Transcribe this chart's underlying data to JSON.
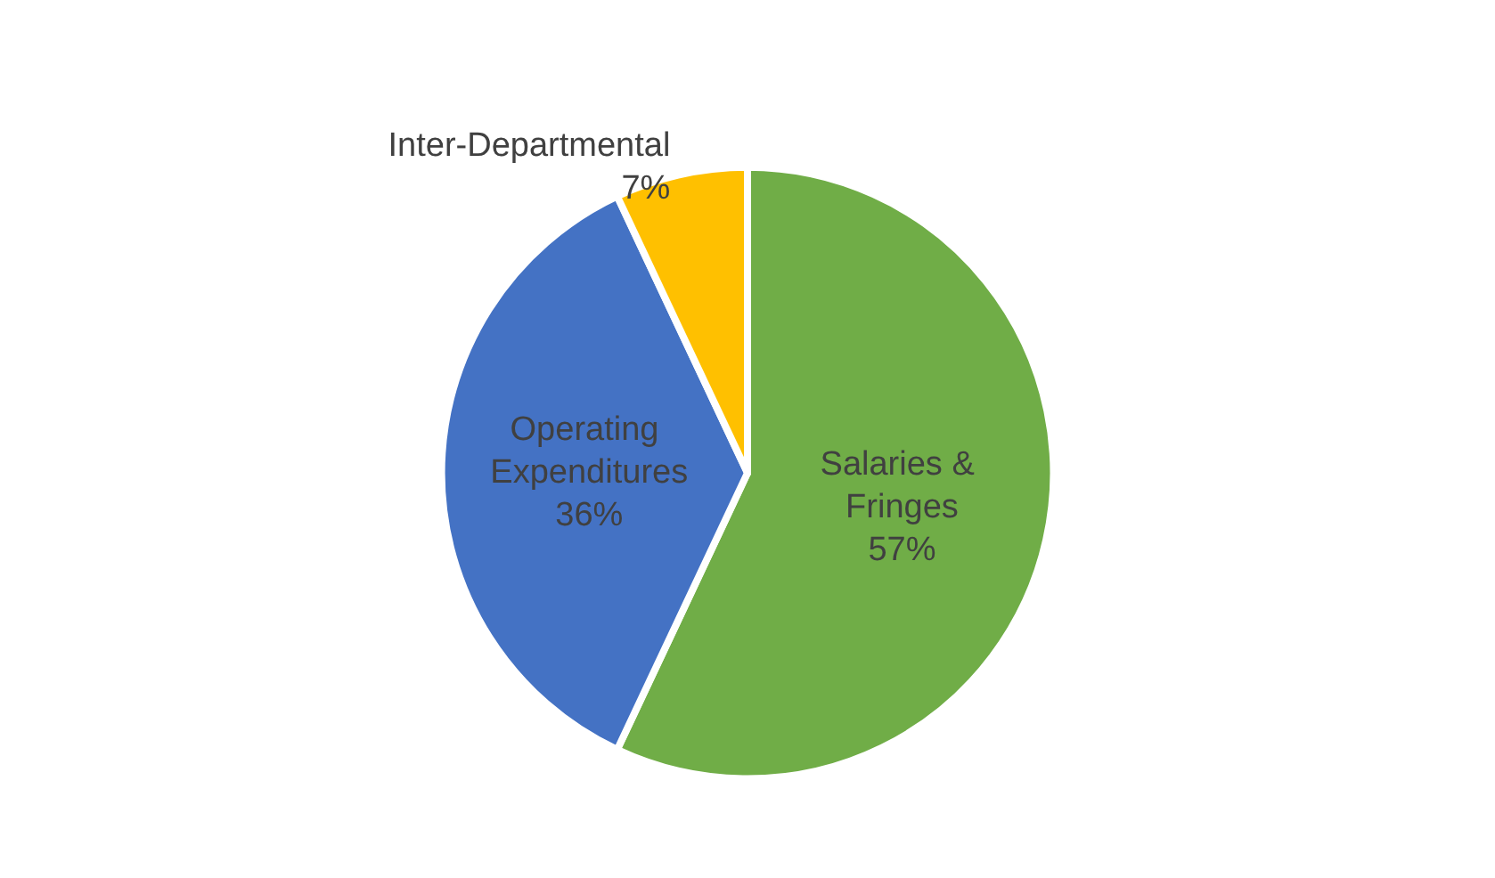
{
  "chart_data": {
    "type": "pie",
    "categories": [
      "Salaries & Fringes",
      "Operating Expenditures",
      "Inter-Departmental"
    ],
    "values": [
      57,
      36,
      7
    ],
    "colors": [
      "#70ad47",
      "#4472c4",
      "#ffc000"
    ],
    "value_labels": [
      "57%",
      "36%",
      "7%"
    ],
    "legend": false
  }
}
